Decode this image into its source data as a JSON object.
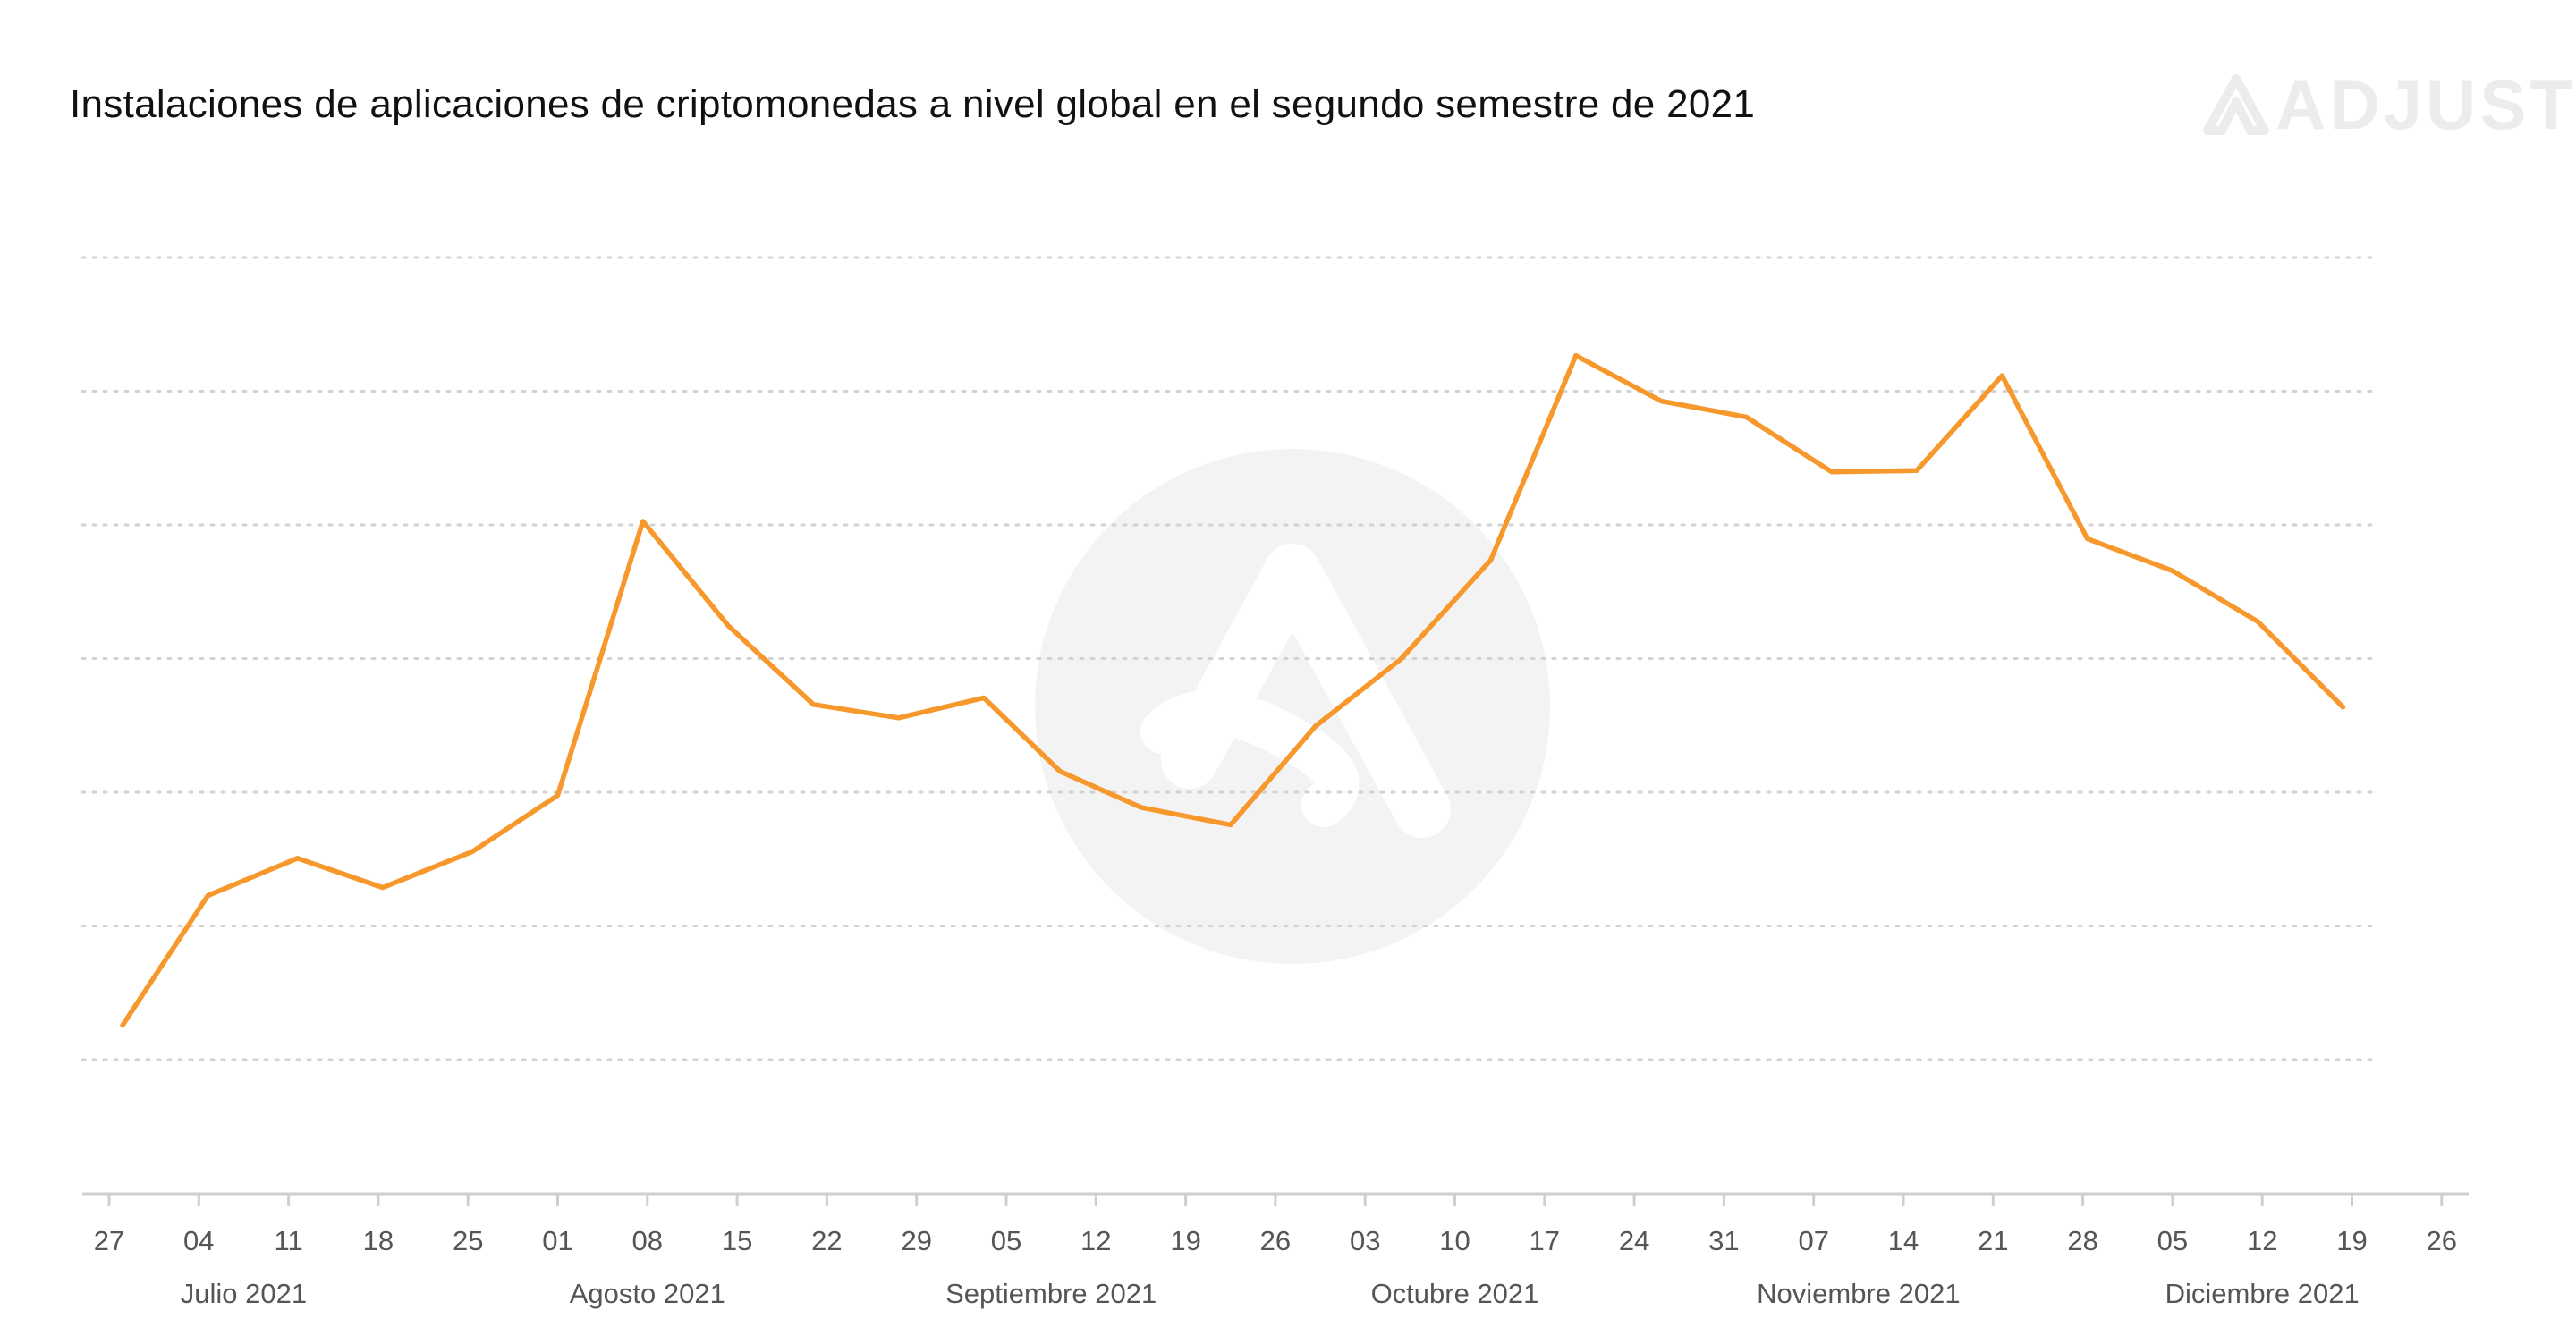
{
  "title": "Instalaciones de aplicaciones de criptomonedas a nivel global en el segundo semestre de 2021",
  "brand": {
    "name": "ADJUST",
    "icon": "adjust-logo-icon",
    "watermark_icon": "adjust-watermark-icon"
  },
  "colors": {
    "line": "#f7982d",
    "grid": "#d2d2d2",
    "axis": "#cfcfcf",
    "brand": "#ececec",
    "watermark": "#f4f3f3"
  },
  "chart_data": {
    "type": "line",
    "title": "Instalaciones de aplicaciones de criptomonedas a nivel global en el segundo semestre de 2021",
    "xlabel": "",
    "ylabel": "",
    "y_axis_labels_shown": false,
    "y_unit": "relative",
    "ylim": [
      0,
      7
    ],
    "grid": "horizontal dotted",
    "legend": "none",
    "x_ticks": [
      "27",
      "04",
      "11",
      "18",
      "25",
      "01",
      "08",
      "15",
      "22",
      "29",
      "05",
      "12",
      "19",
      "26",
      "03",
      "10",
      "17",
      "24",
      "31",
      "07",
      "14",
      "21",
      "28",
      "05",
      "12",
      "19",
      "26"
    ],
    "month_labels": [
      {
        "label": "Julio  2021",
        "tick_index": 1.5
      },
      {
        "label": "Agosto  2021",
        "tick_index": 6
      },
      {
        "label": "Septiembre 2021",
        "tick_index": 10.5
      },
      {
        "label": "Octubre  2021",
        "tick_index": 15
      },
      {
        "label": "Noviembre  2021",
        "tick_index": 19.5
      },
      {
        "label": "Diciembre  2021",
        "tick_index": 24
      }
    ],
    "series": [
      {
        "x": [
          0.15,
          1.1,
          2.1,
          3.05,
          4.05,
          5.0,
          5.95,
          6.9,
          7.85,
          8.8,
          9.75,
          10.6,
          11.5,
          12.5,
          13.45,
          14.4,
          15.4,
          16.35,
          17.3,
          18.25,
          19.2,
          20.15,
          21.1,
          22.05,
          23.0,
          23.95,
          24.9
        ],
        "values": [
          1.26,
          2.23,
          2.51,
          2.29,
          2.56,
          2.98,
          5.03,
          4.25,
          3.66,
          3.56,
          3.71,
          3.16,
          2.89,
          2.76,
          3.5,
          4.0,
          4.74,
          6.27,
          5.93,
          5.81,
          5.4,
          5.41,
          6.12,
          4.9,
          4.66,
          4.28,
          3.64
        ]
      }
    ]
  }
}
